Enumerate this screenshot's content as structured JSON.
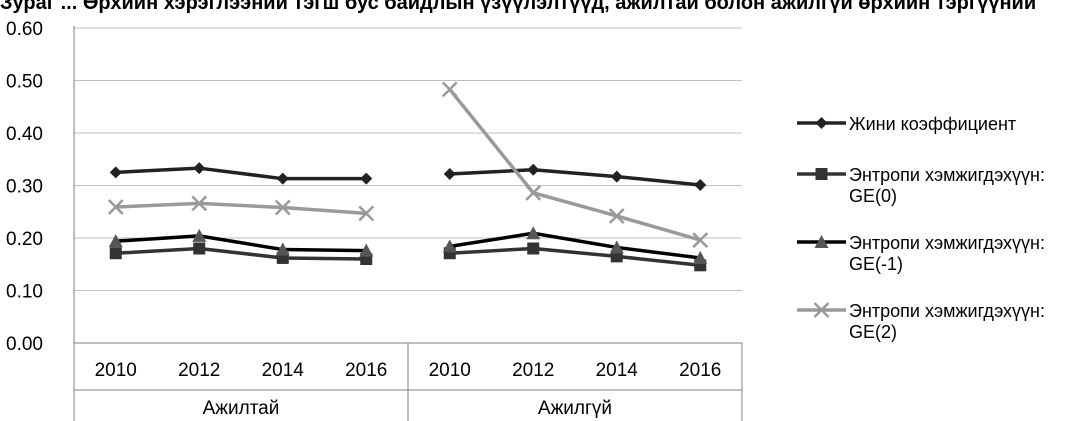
{
  "chart_data": {
    "type": "line",
    "title": "Зураг ... Өрхийн хэрэглээний тэгш бус байдлын үзүүлэлтүүд, ажилтай болон ажилгүй өрхийн тэргүүний",
    "xlabel": "",
    "ylabel": "",
    "ylim": [
      0,
      0.6
    ],
    "yticks": [
      "0.00",
      "0.10",
      "0.20",
      "0.30",
      "0.40",
      "0.50",
      "0.60"
    ],
    "grid": true,
    "legend_position": "right",
    "groups": [
      {
        "label": "Ажилтай",
        "categories": [
          "2010",
          "2012",
          "2014",
          "2016"
        ]
      },
      {
        "label": "Ажилгүй",
        "categories": [
          "2010",
          "2012",
          "2014",
          "2016"
        ]
      }
    ],
    "series": [
      {
        "name": "Жини коэффициент",
        "legend_lines": [
          "Жини коэффициент"
        ],
        "color": "#222222",
        "marker": "diamond",
        "values": [
          [
            0.325,
            0.333,
            0.313,
            0.313
          ],
          [
            0.322,
            0.33,
            0.317,
            0.301
          ]
        ]
      },
      {
        "name": "Энтропи хэмжигдэхүүн: GE(0)",
        "legend_lines": [
          "Энтропи хэмжигдэхүүн:",
          "GE(0)"
        ],
        "color": "#333333",
        "marker": "square",
        "values": [
          [
            0.171,
            0.18,
            0.162,
            0.16
          ],
          [
            0.171,
            0.18,
            0.165,
            0.148
          ]
        ]
      },
      {
        "name": "Энтропи хэмжигдэхүүн: GE(-1)",
        "legend_lines": [
          "Энтропи хэмжигдэхүүн:",
          "GE(-1)"
        ],
        "color": "#000000",
        "marker": "triangle",
        "values": [
          [
            0.194,
            0.204,
            0.178,
            0.176
          ],
          [
            0.184,
            0.209,
            0.182,
            0.162
          ]
        ]
      },
      {
        "name": "Энтропи хэмжигдэхүүн: GE(2)",
        "legend_lines": [
          "Энтропи хэмжигдэхүүн:",
          "GE(2)"
        ],
        "color": "#999999",
        "marker": "x",
        "values": [
          [
            0.259,
            0.266,
            0.258,
            0.247
          ],
          [
            0.483,
            0.286,
            0.242,
            0.196
          ]
        ]
      }
    ]
  }
}
